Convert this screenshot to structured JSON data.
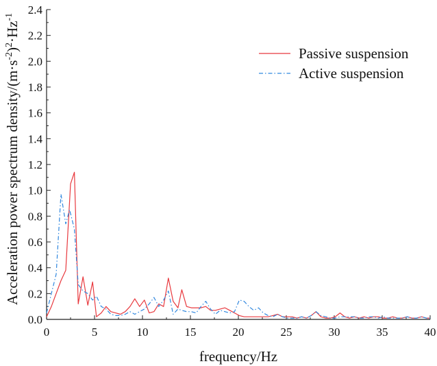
{
  "chart_data": {
    "type": "line",
    "title": "",
    "xlabel": "frequency/Hz",
    "ylabel_parts": {
      "base": "Acceleration power spectrum density/(m·s",
      "sup1": "-2",
      "mid": ")",
      "sup2": "2",
      "after": "·Hz",
      "sup3": "-1"
    },
    "xlim": [
      0,
      40
    ],
    "ylim": [
      0,
      2.4
    ],
    "xticks": [
      0,
      5,
      10,
      15,
      20,
      25,
      30,
      35,
      40
    ],
    "yticks": [
      0.0,
      0.2,
      0.4,
      0.6,
      0.8,
      1.0,
      1.2,
      1.4,
      1.6,
      1.8,
      2.0,
      2.2,
      2.4
    ],
    "xtick_labels": [
      "0",
      "5",
      "10",
      "15",
      "20",
      "25",
      "30",
      "35",
      "40"
    ],
    "ytick_labels": [
      "0.0",
      "0.2",
      "0.4",
      "0.6",
      "0.8",
      "1.0",
      "1.2",
      "1.4",
      "1.6",
      "1.8",
      "2.0",
      "2.2",
      "2.4"
    ],
    "grid": false,
    "legend_position": "top-right",
    "series": [
      {
        "name": "Passive suspension",
        "color": "#e8383d",
        "style": "solid",
        "points": [
          [
            0.0,
            0.02
          ],
          [
            0.5,
            0.1
          ],
          [
            1.0,
            0.2
          ],
          [
            1.5,
            0.3
          ],
          [
            2.0,
            0.38
          ],
          [
            2.5,
            1.05
          ],
          [
            2.9,
            1.14
          ],
          [
            3.3,
            0.12
          ],
          [
            3.8,
            0.33
          ],
          [
            4.3,
            0.11
          ],
          [
            4.8,
            0.29
          ],
          [
            5.2,
            0.02
          ],
          [
            5.7,
            0.05
          ],
          [
            6.2,
            0.1
          ],
          [
            6.7,
            0.06
          ],
          [
            7.2,
            0.05
          ],
          [
            7.7,
            0.04
          ],
          [
            8.2,
            0.06
          ],
          [
            8.7,
            0.1
          ],
          [
            9.2,
            0.16
          ],
          [
            9.7,
            0.1
          ],
          [
            10.2,
            0.15
          ],
          [
            10.7,
            0.05
          ],
          [
            11.2,
            0.06
          ],
          [
            11.7,
            0.12
          ],
          [
            12.2,
            0.1
          ],
          [
            12.7,
            0.32
          ],
          [
            13.2,
            0.14
          ],
          [
            13.7,
            0.09
          ],
          [
            14.1,
            0.23
          ],
          [
            14.6,
            0.1
          ],
          [
            15.1,
            0.09
          ],
          [
            15.6,
            0.09
          ],
          [
            16.1,
            0.09
          ],
          [
            16.6,
            0.1
          ],
          [
            17.1,
            0.07
          ],
          [
            17.6,
            0.07
          ],
          [
            18.1,
            0.08
          ],
          [
            18.6,
            0.09
          ],
          [
            19.1,
            0.07
          ],
          [
            19.6,
            0.05
          ],
          [
            20.1,
            0.03
          ],
          [
            20.6,
            0.02
          ],
          [
            21.1,
            0.02
          ],
          [
            21.6,
            0.02
          ],
          [
            22.1,
            0.02
          ],
          [
            22.6,
            0.02
          ],
          [
            23.1,
            0.02
          ],
          [
            23.6,
            0.03
          ],
          [
            24.1,
            0.04
          ],
          [
            24.6,
            0.02
          ],
          [
            25.1,
            0.02
          ],
          [
            25.6,
            0.02
          ],
          [
            26.1,
            0.01
          ],
          [
            26.6,
            0.02
          ],
          [
            27.1,
            0.01
          ],
          [
            27.6,
            0.03
          ],
          [
            28.1,
            0.06
          ],
          [
            28.6,
            0.02
          ],
          [
            29.1,
            0.01
          ],
          [
            29.6,
            0.01
          ],
          [
            30.1,
            0.02
          ],
          [
            30.6,
            0.05
          ],
          [
            31.1,
            0.02
          ],
          [
            31.6,
            0.01
          ],
          [
            32.1,
            0.02
          ],
          [
            32.6,
            0.01
          ],
          [
            33.1,
            0.02
          ],
          [
            33.6,
            0.01
          ],
          [
            34.1,
            0.02
          ],
          [
            34.6,
            0.02
          ],
          [
            35.1,
            0.01
          ],
          [
            35.6,
            0.01
          ],
          [
            36.1,
            0.02
          ],
          [
            36.6,
            0.01
          ],
          [
            37.1,
            0.01
          ],
          [
            37.6,
            0.02
          ],
          [
            38.1,
            0.01
          ],
          [
            38.6,
            0.01
          ],
          [
            39.1,
            0.02
          ],
          [
            39.6,
            0.01
          ],
          [
            40.0,
            0.01
          ]
        ]
      },
      {
        "name": "Active suspension",
        "color": "#2e86de",
        "style": "dashdot",
        "points": [
          [
            0.0,
            0.05
          ],
          [
            0.5,
            0.2
          ],
          [
            1.0,
            0.35
          ],
          [
            1.5,
            0.97
          ],
          [
            2.0,
            0.74
          ],
          [
            2.4,
            0.85
          ],
          [
            2.9,
            0.7
          ],
          [
            3.3,
            0.27
          ],
          [
            3.8,
            0.22
          ],
          [
            4.3,
            0.2
          ],
          [
            4.8,
            0.15
          ],
          [
            5.2,
            0.18
          ],
          [
            5.7,
            0.1
          ],
          [
            6.2,
            0.08
          ],
          [
            6.7,
            0.04
          ],
          [
            7.2,
            0.03
          ],
          [
            7.7,
            0.03
          ],
          [
            8.2,
            0.04
          ],
          [
            8.7,
            0.06
          ],
          [
            9.2,
            0.04
          ],
          [
            9.7,
            0.06
          ],
          [
            10.2,
            0.08
          ],
          [
            10.7,
            0.12
          ],
          [
            11.2,
            0.17
          ],
          [
            11.7,
            0.1
          ],
          [
            12.2,
            0.15
          ],
          [
            12.7,
            0.22
          ],
          [
            13.2,
            0.04
          ],
          [
            13.7,
            0.08
          ],
          [
            14.1,
            0.07
          ],
          [
            14.6,
            0.06
          ],
          [
            15.1,
            0.06
          ],
          [
            15.6,
            0.05
          ],
          [
            16.1,
            0.1
          ],
          [
            16.6,
            0.14
          ],
          [
            17.1,
            0.08
          ],
          [
            17.6,
            0.04
          ],
          [
            18.1,
            0.07
          ],
          [
            18.6,
            0.06
          ],
          [
            19.1,
            0.05
          ],
          [
            19.6,
            0.06
          ],
          [
            20.1,
            0.15
          ],
          [
            20.6,
            0.14
          ],
          [
            21.1,
            0.1
          ],
          [
            21.6,
            0.07
          ],
          [
            22.1,
            0.09
          ],
          [
            22.6,
            0.05
          ],
          [
            23.1,
            0.03
          ],
          [
            23.6,
            0.02
          ],
          [
            24.1,
            0.04
          ],
          [
            24.6,
            0.02
          ],
          [
            25.1,
            0.01
          ],
          [
            25.6,
            0.01
          ],
          [
            26.1,
            0.01
          ],
          [
            26.6,
            0.02
          ],
          [
            27.1,
            0.01
          ],
          [
            27.6,
            0.03
          ],
          [
            28.1,
            0.06
          ],
          [
            28.6,
            0.03
          ],
          [
            29.1,
            0.02
          ],
          [
            29.6,
            0.01
          ],
          [
            30.1,
            0.01
          ],
          [
            30.6,
            0.02
          ],
          [
            31.1,
            0.02
          ],
          [
            31.6,
            0.02
          ],
          [
            32.1,
            0.02
          ],
          [
            32.6,
            0.01
          ],
          [
            33.1,
            0.01
          ],
          [
            33.6,
            0.02
          ],
          [
            34.1,
            0.02
          ],
          [
            34.6,
            0.01
          ],
          [
            35.1,
            0.02
          ],
          [
            35.6,
            0.01
          ],
          [
            36.1,
            0.01
          ],
          [
            36.6,
            0.01
          ],
          [
            37.1,
            0.01
          ],
          [
            37.6,
            0.02
          ],
          [
            38.1,
            0.01
          ],
          [
            38.6,
            0.01
          ],
          [
            39.1,
            0.02
          ],
          [
            39.6,
            0.01
          ],
          [
            40.0,
            0.01
          ]
        ]
      }
    ]
  }
}
